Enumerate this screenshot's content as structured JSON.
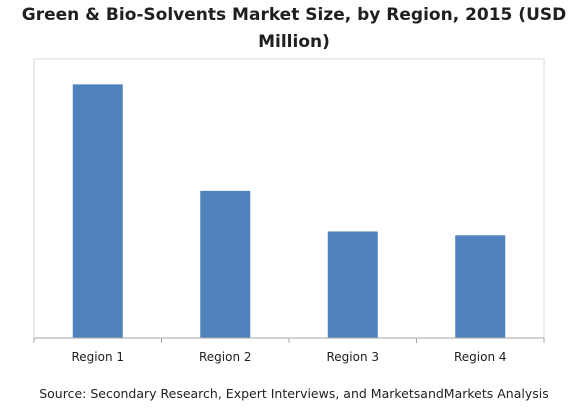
{
  "chart_data": {
    "type": "bar",
    "title": "Green & Bio-Solvents Market Size, by Region, 2015 (USD Million)",
    "title_lines": [
      "Green & Bio-Solvents Market Size, by Region, 2015 (USD",
      "Million)"
    ],
    "categories": [
      "Region 1",
      "Region 2",
      "Region 3",
      "Region 4"
    ],
    "values": [
      100,
      58,
      42,
      40.5
    ],
    "ylim": [
      0,
      110
    ],
    "xlabel": "",
    "ylabel": "",
    "grid": false,
    "legend": "none",
    "bar_color": "#4f81bd",
    "source": "Source: Secondary Research, Expert Interviews, and MarketsandMarkets Analysis"
  }
}
